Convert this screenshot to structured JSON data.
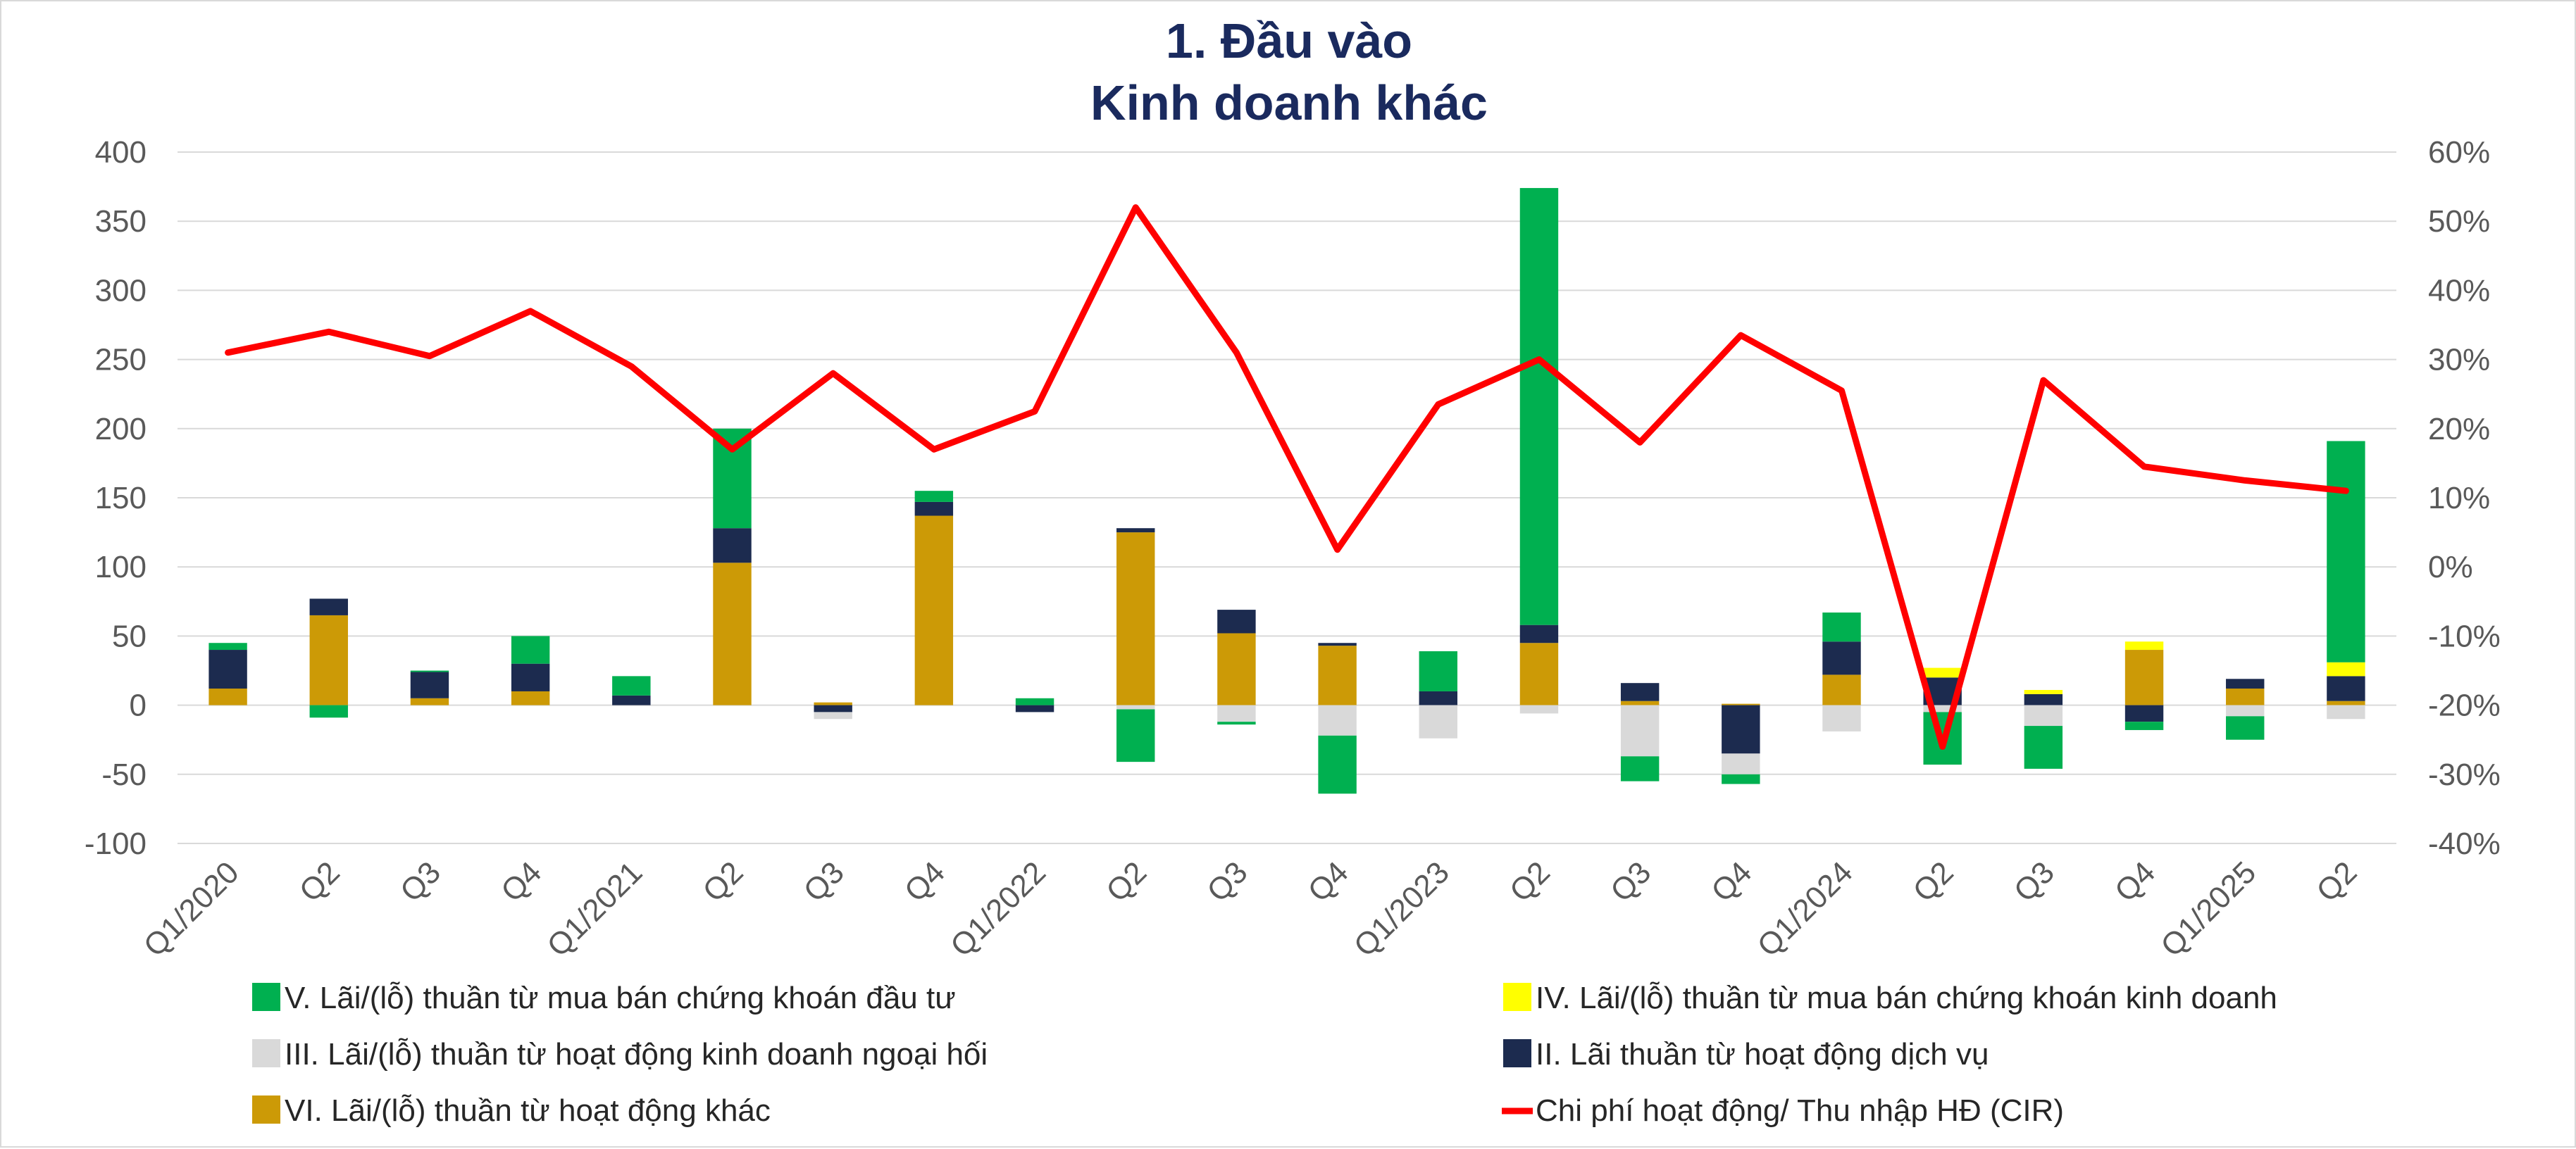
{
  "chart_data": {
    "type": "bar",
    "title": "1. Đầu vào",
    "subtitle": "Kinh doanh khác",
    "stacked": true,
    "categories": [
      "Q1/2020",
      "Q2",
      "Q3",
      "Q4",
      "Q1/2021",
      "Q2",
      "Q3",
      "Q4",
      "Q1/2022",
      "Q2",
      "Q3",
      "Q4",
      "Q1/2023",
      "Q2",
      "Q3",
      "Q4",
      "Q1/2024",
      "Q2",
      "Q3",
      "Q4",
      "Q1/2025",
      "Q2"
    ],
    "ylim": [
      -100,
      400
    ],
    "yticks": [
      -100,
      -50,
      0,
      50,
      100,
      150,
      200,
      250,
      300,
      350,
      400
    ],
    "y2lim": [
      -40,
      60
    ],
    "y2ticks": [
      -40,
      -30,
      -20,
      -10,
      0,
      10,
      20,
      30,
      40,
      50,
      60
    ],
    "y2tick_suffix": "%",
    "grid": true,
    "legend_position": "bottom",
    "series": [
      {
        "key": "vi",
        "name": "VI. Lãi/(lỗ) thuần từ hoạt động khác",
        "color": "#cc9a06",
        "values": [
          12,
          65,
          5,
          10,
          0,
          103,
          2,
          137,
          0,
          125,
          52,
          43,
          0,
          45,
          3,
          1,
          22,
          0,
          0,
          40,
          12,
          3
        ]
      },
      {
        "key": "ii",
        "name": "II. Lãi thuần từ hoạt động dịch vụ",
        "color": "#1c2b4f",
        "values": [
          28,
          12,
          19,
          20,
          7,
          25,
          -5,
          10,
          -5,
          3,
          17,
          2,
          10,
          13,
          13,
          -35,
          24,
          20,
          8,
          -12,
          7,
          18
        ]
      },
      {
        "key": "iii",
        "name": "III. Lãi/(lỗ) thuần từ hoạt động kinh doanh ngoại hối",
        "color": "#d9d9d9",
        "values": [
          0,
          0,
          0,
          0,
          0,
          0,
          -5,
          0,
          0,
          -3,
          -12,
          -22,
          -24,
          -6,
          -37,
          -15,
          -19,
          -5,
          -15,
          0,
          -8,
          -10
        ]
      },
      {
        "key": "iv",
        "name": "IV. Lãi/(lỗ) thuần từ mua bán chứng khoán kinh doanh",
        "color": "#ffff00",
        "values": [
          0,
          0,
          0,
          0,
          0,
          0,
          0,
          0,
          0,
          0,
          0,
          0,
          0,
          0,
          0,
          0,
          0,
          7,
          3,
          6,
          0,
          10
        ]
      },
      {
        "key": "v",
        "name": "V. Lãi/(lỗ) thuần từ mua bán chứng khoán đầu tư",
        "color": "#00b050",
        "values": [
          5,
          -9,
          1,
          20,
          14,
          72,
          0,
          8,
          5,
          -38,
          -2,
          -42,
          29,
          316,
          -18,
          -7,
          21,
          -38,
          -31,
          -6,
          -17,
          160
        ]
      }
    ],
    "line_series": {
      "name": "Chi phí hoạt động/ Thu nhập HĐ (CIR)",
      "color": "#ff0000",
      "axis": "right",
      "values": [
        31,
        34,
        30.5,
        37,
        29,
        17,
        28,
        17,
        22.5,
        52,
        31,
        2.5,
        23.5,
        30,
        18,
        33.5,
        25.5,
        -26,
        27,
        14.5,
        12.5,
        11
      ]
    },
    "legend": [
      {
        "key": "v",
        "name": "V. Lãi/(lỗ) thuần từ mua bán chứng khoán đầu tư",
        "color": "#00b050",
        "marker": "square"
      },
      {
        "key": "iv",
        "name": "IV. Lãi/(lỗ) thuần từ mua bán chứng khoán kinh doanh",
        "color": "#ffff00",
        "marker": "square"
      },
      {
        "key": "iii",
        "name": "III. Lãi/(lỗ) thuần từ hoạt động kinh doanh ngoại hối",
        "color": "#d9d9d9",
        "marker": "square"
      },
      {
        "key": "ii",
        "name": "II. Lãi thuần từ hoạt động dịch vụ",
        "color": "#1c2b4f",
        "marker": "square"
      },
      {
        "key": "vi",
        "name": "VI. Lãi/(lỗ) thuần từ hoạt động khác",
        "color": "#cc9a06",
        "marker": "square"
      },
      {
        "key": "cir",
        "name": "Chi phí hoạt động/ Thu nhập HĐ (CIR)",
        "color": "#ff0000",
        "marker": "line"
      }
    ]
  }
}
